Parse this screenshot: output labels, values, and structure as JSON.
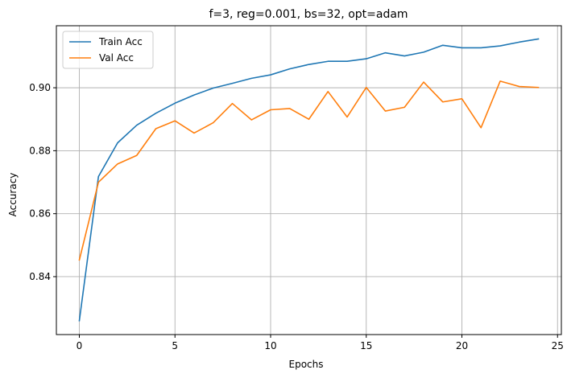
{
  "chart_data": {
    "type": "line",
    "title": "f=3, reg=0.001, bs=32, opt=adam",
    "xlabel": "Epochs",
    "ylabel": "Accuracy",
    "x": [
      0,
      1,
      2,
      3,
      4,
      5,
      6,
      7,
      8,
      9,
      10,
      11,
      12,
      13,
      14,
      15,
      16,
      17,
      18,
      19,
      20,
      21,
      22,
      23,
      24
    ],
    "series": [
      {
        "name": "Train Acc",
        "color": "#1f77b4",
        "values": [
          0.826,
          0.8718,
          0.8825,
          0.8881,
          0.8919,
          0.8951,
          0.8977,
          0.8999,
          0.9014,
          0.903,
          0.9041,
          0.906,
          0.9074,
          0.9084,
          0.9084,
          0.9092,
          0.9111,
          0.9101,
          0.9113,
          0.9135,
          0.9127,
          0.9127,
          0.9133,
          0.9145,
          0.9155
        ]
      },
      {
        "name": "Val Acc",
        "color": "#ff7f0e",
        "values": [
          0.8453,
          0.87,
          0.8758,
          0.8785,
          0.887,
          0.8895,
          0.8856,
          0.8889,
          0.895,
          0.8898,
          0.893,
          0.8934,
          0.89,
          0.8988,
          0.8907,
          0.9001,
          0.8926,
          0.8938,
          0.9018,
          0.8955,
          0.8965,
          0.8873,
          0.9021,
          0.9004,
          0.9001
        ]
      }
    ],
    "xlim": [
      -1.2,
      25.2
    ],
    "ylim": [
      0.8216,
      0.9197
    ],
    "xticks": [
      0,
      5,
      10,
      15,
      20,
      25
    ],
    "yticks": [
      0.84,
      0.86,
      0.88,
      0.9
    ],
    "ytick_labels": [
      "0.84",
      "0.86",
      "0.88",
      "0.90"
    ],
    "grid": true,
    "legend_position": "top-left"
  }
}
